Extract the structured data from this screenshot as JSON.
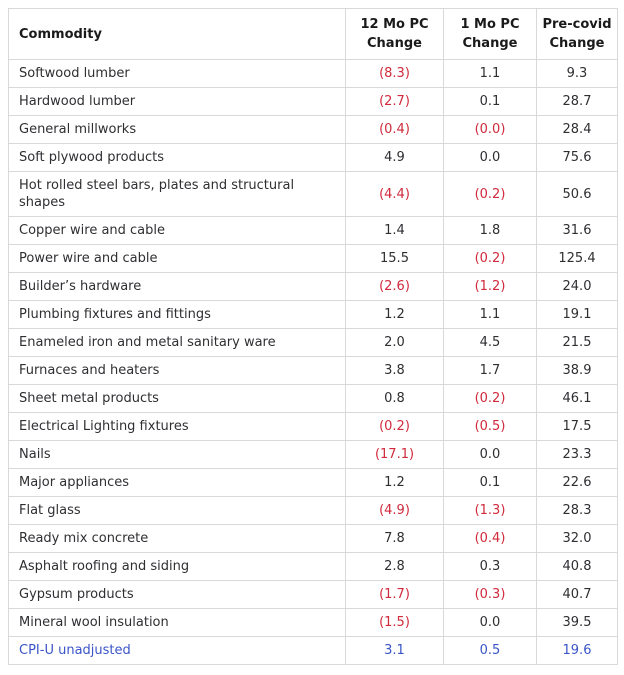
{
  "colors": {
    "negative": "#d02a3c",
    "link": "#3b55c8",
    "border": "#d9d9d9",
    "text": "#2f2f33",
    "header_text": "#1a1a1a"
  },
  "table": {
    "headers": {
      "commodity": "Commodity",
      "mo12": "12 Mo PC Change",
      "mo1": "1 Mo PC Change",
      "precovid": "Pre-covid Change"
    },
    "rows": [
      {
        "commodity": "Softwood lumber",
        "mo12": "(8.3)",
        "mo1": "1.1",
        "precovid": "9.3"
      },
      {
        "commodity": "Hardwood lumber",
        "mo12": "(2.7)",
        "mo1": "0.1",
        "precovid": "28.7"
      },
      {
        "commodity": "General millworks",
        "mo12": "(0.4)",
        "mo1": "(0.0)",
        "precovid": "28.4"
      },
      {
        "commodity": "Soft plywood products",
        "mo12": "4.9",
        "mo1": "0.0",
        "precovid": "75.6"
      },
      {
        "commodity": "Hot rolled steel bars, plates and structural shapes",
        "mo12": "(4.4)",
        "mo1": "(0.2)",
        "precovid": "50.6"
      },
      {
        "commodity": "Copper wire and cable",
        "mo12": "1.4",
        "mo1": "1.8",
        "precovid": "31.6"
      },
      {
        "commodity": "Power wire and cable",
        "mo12": "15.5",
        "mo1": "(0.2)",
        "precovid": "125.4"
      },
      {
        "commodity": "Builder’s hardware",
        "mo12": "(2.6)",
        "mo1": "(1.2)",
        "precovid": "24.0"
      },
      {
        "commodity": "Plumbing fixtures and fittings",
        "mo12": "1.2",
        "mo1": "1.1",
        "precovid": "19.1"
      },
      {
        "commodity": "Enameled iron and metal sanitary ware",
        "mo12": "2.0",
        "mo1": "4.5",
        "precovid": "21.5"
      },
      {
        "commodity": "Furnaces and heaters",
        "mo12": "3.8",
        "mo1": "1.7",
        "precovid": "38.9"
      },
      {
        "commodity": "Sheet metal products",
        "mo12": "0.8",
        "mo1": "(0.2)",
        "precovid": "46.1"
      },
      {
        "commodity": "Electrical Lighting fixtures",
        "mo12": "(0.2)",
        "mo1": "(0.5)",
        "precovid": "17.5"
      },
      {
        "commodity": "Nails",
        "mo12": "(17.1)",
        "mo1": "0.0",
        "precovid": "23.3"
      },
      {
        "commodity": "Major appliances",
        "mo12": "1.2",
        "mo1": "0.1",
        "precovid": "22.6"
      },
      {
        "commodity": "Flat glass",
        "mo12": "(4.9)",
        "mo1": "(1.3)",
        "precovid": "28.3"
      },
      {
        "commodity": "Ready mix concrete",
        "mo12": "7.8",
        "mo1": "(0.4)",
        "precovid": "32.0"
      },
      {
        "commodity": "Asphalt roofing and siding",
        "mo12": "2.8",
        "mo1": "0.3",
        "precovid": "40.8"
      },
      {
        "commodity": "Gypsum products",
        "mo12": "(1.7)",
        "mo1": "(0.3)",
        "precovid": "40.7"
      },
      {
        "commodity": "Mineral wool insulation",
        "mo12": "(1.5)",
        "mo1": "0.0",
        "precovid": "39.5"
      },
      {
        "commodity": "CPI-U unadjusted",
        "mo12": "3.1",
        "mo1": "0.5",
        "precovid": "19.6",
        "link": true
      }
    ]
  }
}
